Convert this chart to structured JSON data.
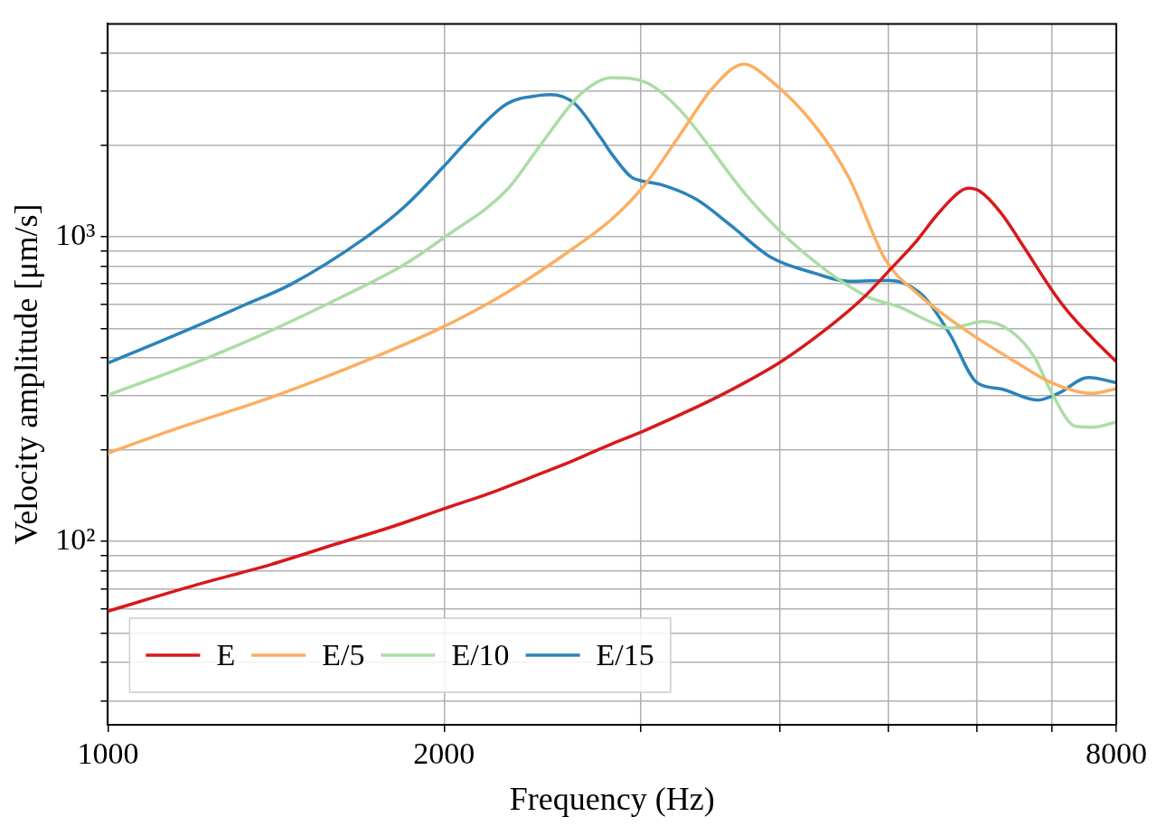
{
  "chart_data": {
    "type": "line",
    "xlabel": "Frequency (Hz)",
    "ylabel": "Velocity amplitude [μm/s]",
    "log": "xy",
    "grid": true,
    "legend": "bottom left",
    "line_style": "solid",
    "marker": "none",
    "xlim": [
      1000,
      8000
    ],
    "xticks": [
      1000,
      2000,
      {
        "value": 3000,
        "label": null
      },
      {
        "value": 4000,
        "label": null
      },
      {
        "value": 5000,
        "label": null
      },
      {
        "value": 6000,
        "label": null
      },
      {
        "value": 7000,
        "label": null
      },
      8000
    ],
    "ylim": [
      25,
      5000
    ],
    "yticks": [
      {
        "value": 30,
        "label": null
      },
      {
        "value": 40,
        "label": null
      },
      {
        "value": 50,
        "label": null
      },
      {
        "value": 60,
        "label": null
      },
      {
        "value": 70,
        "label": null
      },
      {
        "value": 80,
        "label": null
      },
      {
        "value": 90,
        "label": null
      },
      {
        "value": 100,
        "label": "10²"
      },
      {
        "value": 200,
        "label": null
      },
      {
        "value": 300,
        "label": null
      },
      {
        "value": 400,
        "label": null
      },
      {
        "value": 500,
        "label": null
      },
      {
        "value": 600,
        "label": null
      },
      {
        "value": 700,
        "label": null
      },
      {
        "value": 800,
        "label": null
      },
      {
        "value": 900,
        "label": null
      },
      {
        "value": 1000,
        "label": "10³"
      },
      {
        "value": 2000,
        "label": null
      },
      {
        "value": 3000,
        "label": null
      },
      {
        "value": 4000,
        "label": null
      }
    ],
    "series": [
      {
        "name": "E",
        "color": "#d7191c",
        "x": [
          1000,
          1200,
          1400,
          1600,
          1800,
          2000,
          2200,
          2400,
          2600,
          2800,
          3032,
          3558,
          4006,
          4356,
          4736,
          5043,
          5295,
          5521,
          5797,
          5899,
          6043,
          6302,
          6617,
          6997,
          7244,
          7606,
          8000
        ],
        "values": [
          59,
          72,
          84,
          98,
          112,
          128,
          144,
          163,
          183,
          206,
          232,
          305,
          389,
          484,
          625,
          796,
          966,
          1174,
          1408,
          1443,
          1408,
          1202,
          921,
          672,
          567,
          467,
          389
        ]
      },
      {
        "name": "E/5",
        "color": "#fdae61",
        "x": [
          1000,
          1142,
          1417,
          1734,
          2001,
          2276,
          2616,
          2829,
          3032,
          3251,
          3485,
          3712,
          3925,
          4297,
          4606,
          4974,
          5295,
          5878,
          6525,
          6997,
          7606,
          8000
        ],
        "values": [
          195,
          232,
          302,
          403,
          508,
          656,
          921,
          1146,
          1496,
          2153,
          3097,
          3687,
          3252,
          2315,
          1570,
          836,
          656,
          490,
          385,
          332,
          306,
          317
        ]
      },
      {
        "name": "E/10",
        "color": "#abdda4",
        "x": [
          1000,
          1233,
          1417,
          1606,
          1847,
          2001,
          2276,
          2440,
          2653,
          2829,
          3032,
          3251,
          3738,
          4149,
          4770,
          5114,
          5483,
          5677,
          6086,
          6436,
          6755,
          6997,
          7348,
          7606,
          8000
        ],
        "values": [
          302,
          403,
          502,
          625,
          815,
          995,
          1424,
          2001,
          2951,
          3330,
          3213,
          2613,
          1357,
          921,
          640,
          588,
          521,
          502,
          527,
          490,
          403,
          309,
          239,
          237,
          246
        ]
      },
      {
        "name": "E/15",
        "color": "#2b83ba",
        "x": [
          1000,
          1182,
          1322,
          1457,
          1699,
          1846,
          2001,
          2094,
          2276,
          2440,
          2492,
          2616,
          2766,
          2829,
          2942,
          2991,
          3140,
          3367,
          3610,
          3925,
          4297,
          4606,
          5008,
          5370,
          5677,
          6002,
          6302,
          6804,
          7095,
          7554,
          8000
        ],
        "values": [
          385,
          497,
          595,
          697,
          991,
          1262,
          1709,
          2050,
          2731,
          2915,
          2929,
          2744,
          2101,
          1861,
          1570,
          1533,
          1477,
          1325,
          1092,
          856,
          759,
          714,
          719,
          640,
          478,
          332,
          317,
          291,
          306,
          345,
          332
        ]
      }
    ]
  }
}
